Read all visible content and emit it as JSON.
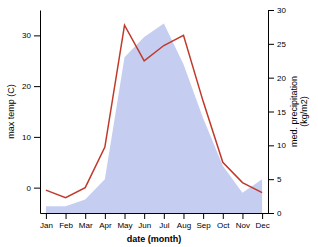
{
  "chart_data": {
    "type": "line",
    "categories": [
      "Jan",
      "Feb",
      "Mar",
      "Apr",
      "May",
      "Jun",
      "Jul",
      "Aug",
      "Sep",
      "Oct",
      "Nov",
      "Dec"
    ],
    "xlabel": "date (month)",
    "ylabel": "max temp (C)",
    "y2label": "med. precipitation\n(kg/m2)",
    "series": [
      {
        "type": "area",
        "axis": "y2",
        "color": "#c5cef0",
        "values": [
          1,
          1,
          2,
          5,
          23,
          26,
          28,
          22,
          14,
          7,
          3,
          5
        ]
      },
      {
        "type": "line",
        "color": "#c0392b",
        "values": [
          -0.5,
          -2,
          0,
          8,
          32,
          25,
          28,
          30,
          17,
          5,
          1,
          -1
        ]
      }
    ],
    "ylim": [
      -5,
      35
    ],
    "yticks": [
      0,
      10,
      20,
      30
    ],
    "y2lim": [
      0,
      30
    ],
    "y2ticks": [
      0,
      5,
      10,
      15,
      20,
      25,
      30
    ],
    "grid": false
  }
}
